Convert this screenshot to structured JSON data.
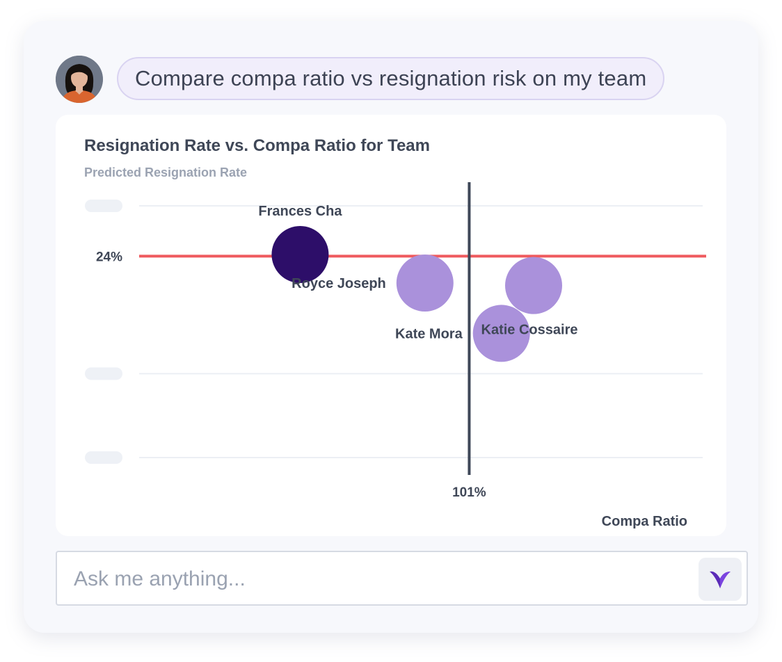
{
  "prompt": {
    "text": "Compare compa ratio vs resignation risk on my team"
  },
  "chart_data": {
    "type": "scatter",
    "title": "Resignation Rate vs. Compa Ratio for Team",
    "ylabel": "Predicted Resignation Rate",
    "xlabel": "Compa Ratio",
    "xlim": [
      60,
      130
    ],
    "ylim": [
      0,
      30
    ],
    "reference_lines": {
      "x": {
        "value": 101,
        "label": "101%"
      },
      "y": {
        "value": 24,
        "label": "24%"
      }
    },
    "points": [
      {
        "name": "Frances Cha",
        "x": 80,
        "y": 24.2,
        "highlight": true,
        "label_pos": "above"
      },
      {
        "name": "Royce Joseph",
        "x": 95.5,
        "y": 20.8,
        "highlight": false,
        "label_pos": "left"
      },
      {
        "name": "Katie Cossaire",
        "x": 109,
        "y": 20.5,
        "highlight": false,
        "label_pos": "below"
      },
      {
        "name": "Kate Mora",
        "x": 105,
        "y": 14.8,
        "highlight": false,
        "label_pos": "left"
      }
    ],
    "grid": true,
    "colors": {
      "highlight": "#2d0e69",
      "point": "#aa91db",
      "ref_y": "#ef5a5e",
      "ref_x": "#3f4858",
      "grid": "#eceff4",
      "tick_placeholder": "#eef1f6",
      "label": "#3f4757"
    }
  },
  "composer": {
    "placeholder": "Ask me anything..."
  },
  "icons": {
    "avatar": "user-avatar",
    "send": "brand-logo-icon"
  }
}
